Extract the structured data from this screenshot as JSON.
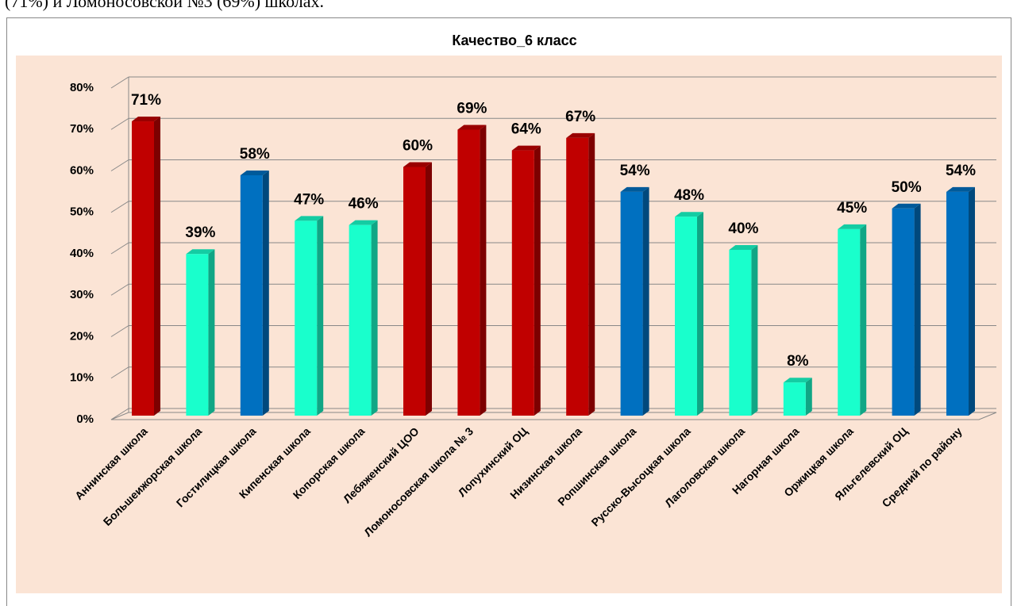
{
  "caption": "(71%) и Ломоносовской №3 (69%) школах.",
  "chart_data": {
    "type": "bar3d",
    "title": "Качество_6 класс",
    "categories": [
      "Аннинская школа",
      "Большеижорская школа",
      "Гостилицкая школа",
      "Кипенская школа",
      "Копорская школа",
      "Лебяженский ЦОО",
      "Ломоносовская школа № 3",
      "Лопухинский ОЦ",
      "Низинская школа",
      "Ропшинская школа",
      "Русско-Высоцкая школа",
      "Лаголовская школа",
      "Нагорная школа",
      "Оржицкая школа",
      " Яльгелевский ОЦ",
      "Средний  по району"
    ],
    "values": [
      71,
      39,
      58,
      47,
      46,
      60,
      69,
      64,
      67,
      54,
      48,
      40,
      8,
      45,
      50,
      54
    ],
    "value_labels": [
      "71%",
      "39%",
      "58%",
      "47%",
      "46%",
      "60%",
      "69%",
      "64%",
      "67%",
      "54%",
      "48%",
      "40%",
      "8%",
      "45%",
      "50%",
      "54%"
    ],
    "colors": [
      "#c00000",
      "#19ffcc",
      "#0070c0",
      "#19ffcc",
      "#19ffcc",
      "#c00000",
      "#c00000",
      "#c00000",
      "#c00000",
      "#0070c0",
      "#19ffcc",
      "#19ffcc",
      "#19ffcc",
      "#19ffcc",
      "#0070c0",
      "#0070c0"
    ],
    "ylim": [
      0,
      80
    ],
    "yticks": [
      {
        "value": 0,
        "label": "0%"
      },
      {
        "value": 10,
        "label": "10%"
      },
      {
        "value": 20,
        "label": "20%"
      },
      {
        "value": 30,
        "label": "30%"
      },
      {
        "value": 40,
        "label": "40%"
      },
      {
        "value": 50,
        "label": "50%"
      },
      {
        "value": 60,
        "label": "60%"
      },
      {
        "value": 70,
        "label": "70%"
      },
      {
        "value": 80,
        "label": "80%"
      }
    ],
    "grid": true
  }
}
